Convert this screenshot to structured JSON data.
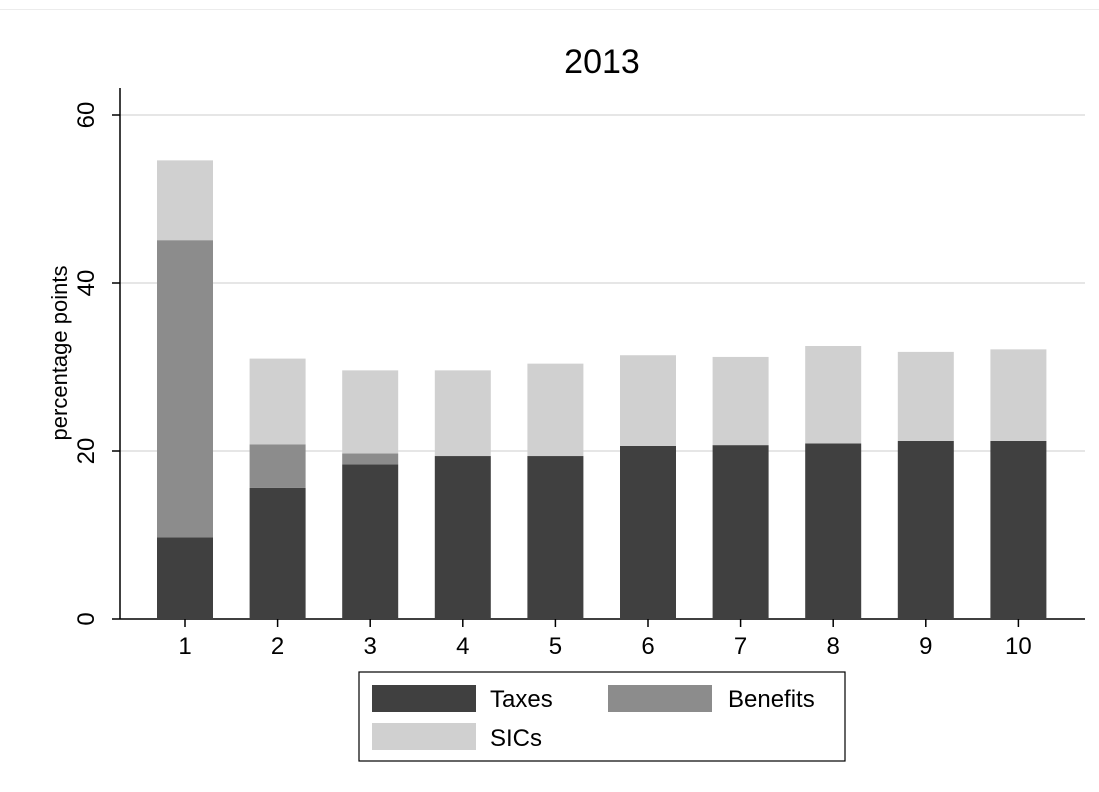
{
  "chart_data": {
    "type": "bar",
    "stacked": true,
    "title": "2013",
    "xlabel": "",
    "ylabel": "percentage points",
    "ylim": [
      0,
      60
    ],
    "yticks": [
      0,
      20,
      40,
      60
    ],
    "grid": true,
    "legend_position": "bottom",
    "categories": [
      "1",
      "2",
      "3",
      "4",
      "5",
      "6",
      "7",
      "8",
      "9",
      "10"
    ],
    "series": [
      {
        "name": "Taxes",
        "color": "#404040",
        "values": [
          9.7,
          15.6,
          18.4,
          19.4,
          19.4,
          20.6,
          20.7,
          20.9,
          21.2,
          21.2
        ]
      },
      {
        "name": "Benefits",
        "color": "#8c8c8c",
        "values": [
          35.4,
          5.2,
          1.3,
          0,
          0,
          0,
          0,
          0,
          0,
          0
        ]
      },
      {
        "name": "SICs",
        "color": "#d0d0d0",
        "values": [
          9.5,
          10.2,
          9.9,
          10.2,
          11.0,
          10.8,
          10.5,
          11.6,
          10.6,
          10.9
        ]
      }
    ]
  }
}
